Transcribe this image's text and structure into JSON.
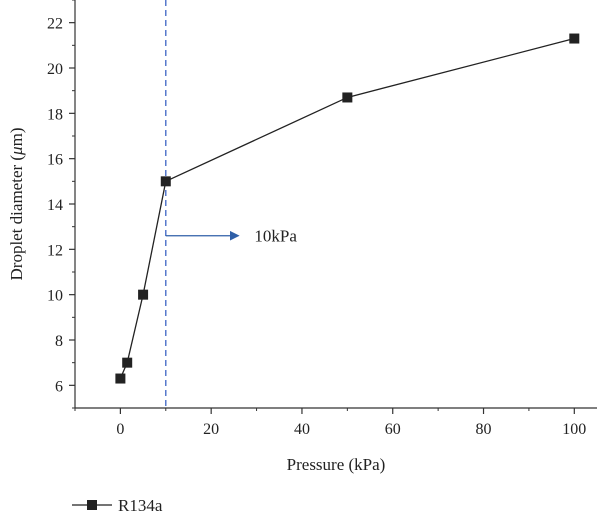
{
  "chart_data": {
    "type": "line",
    "xlabel": "Pressure (kPa)",
    "ylabel_main": "Droplet diameter (",
    "ylabel_unit": "μ",
    "ylabel_tail": "m)",
    "xlim": [
      -10,
      105
    ],
    "ylim": [
      5,
      23
    ],
    "x_ticks": [
      0,
      20,
      40,
      60,
      80,
      100
    ],
    "y_ticks": [
      6,
      8,
      10,
      12,
      14,
      16,
      18,
      20,
      22
    ],
    "series": [
      {
        "name": "R134a",
        "color": "#222222",
        "marker": "square",
        "x": [
          0,
          1.5,
          5,
          10,
          50,
          100
        ],
        "y": [
          6.3,
          7.0,
          10.0,
          15.0,
          18.7,
          21.3
        ]
      }
    ],
    "reference_line": {
      "x": 10,
      "color": "#4a6fc7",
      "style": "dashed"
    },
    "annotation": {
      "text": "10kPa",
      "arrow_from_x": 10,
      "arrow_to_x": 26,
      "y": 12.6,
      "color": "#2f5fa8"
    },
    "legend_position": "bottom-left",
    "grid": false
  }
}
